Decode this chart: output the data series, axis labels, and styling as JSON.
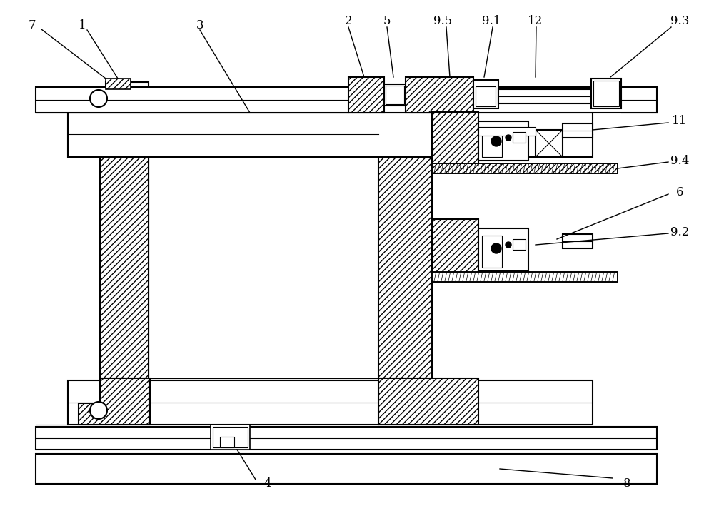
{
  "bg_color": "#ffffff",
  "line_color": "#000000",
  "fig_width": 10.0,
  "fig_height": 7.3,
  "lw_main": 1.3,
  "lw_thin": 0.8,
  "hatch_density": "////",
  "font_size": 12,
  "font_family": "serif"
}
